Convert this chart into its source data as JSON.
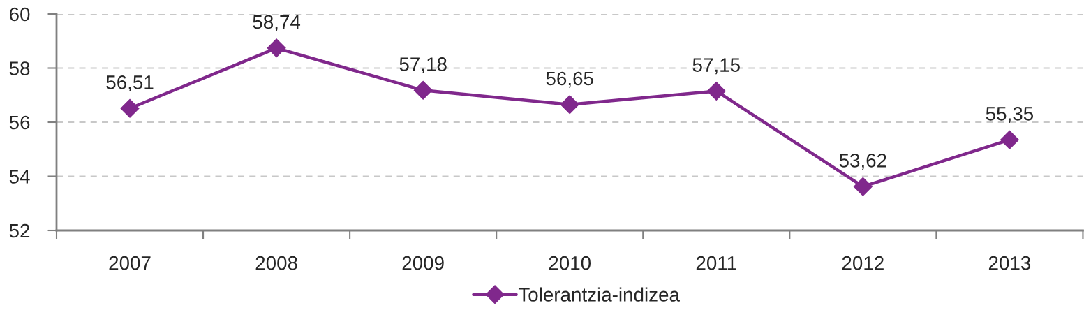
{
  "chart_data": {
    "type": "line",
    "categories": [
      "2007",
      "2008",
      "2009",
      "2010",
      "2011",
      "2012",
      "2013"
    ],
    "series": [
      {
        "name": "Tolerantzia-indizea",
        "color": "#80288c",
        "values": [
          56.51,
          58.74,
          57.18,
          56.65,
          57.15,
          53.62,
          55.35
        ],
        "value_labels": [
          "56,51",
          "58,74",
          "57,18",
          "56,65",
          "57,15",
          "53,62",
          "55,35"
        ]
      }
    ],
    "ylim": [
      52,
      60
    ],
    "yticks": [
      52,
      54,
      56,
      58,
      60
    ],
    "grid": "y",
    "legend": "bottom",
    "marker": "diamond",
    "line_style": "solid"
  }
}
